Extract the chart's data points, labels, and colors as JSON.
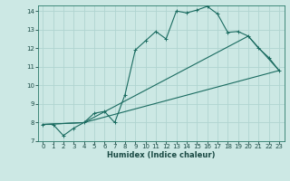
{
  "xlabel": "Humidex (Indice chaleur)",
  "xlim": [
    -0.5,
    23.5
  ],
  "ylim": [
    7,
    14.3
  ],
  "yticks": [
    7,
    8,
    9,
    10,
    11,
    12,
    13,
    14
  ],
  "xticks": [
    0,
    1,
    2,
    3,
    4,
    5,
    6,
    7,
    8,
    9,
    10,
    11,
    12,
    13,
    14,
    15,
    16,
    17,
    18,
    19,
    20,
    21,
    22,
    23
  ],
  "background_color": "#cce8e4",
  "grid_color": "#b0d4d0",
  "line_color": "#1a6b60",
  "curve1_x": [
    0,
    1,
    2,
    3,
    4,
    5,
    6,
    7,
    8,
    9,
    10,
    11,
    12,
    13,
    14,
    15,
    16,
    17,
    18,
    19,
    20,
    21,
    22,
    23
  ],
  "curve1_y": [
    7.9,
    7.9,
    7.3,
    7.7,
    8.0,
    8.5,
    8.6,
    8.0,
    9.5,
    11.9,
    12.4,
    12.9,
    12.5,
    14.0,
    13.9,
    14.05,
    14.25,
    13.85,
    12.85,
    12.9,
    12.65,
    12.0,
    11.5,
    10.8
  ],
  "curve2_x": [
    0,
    4,
    23
  ],
  "curve2_y": [
    7.9,
    8.0,
    10.8
  ],
  "curve3_x": [
    0,
    4,
    20,
    23
  ],
  "curve3_y": [
    7.9,
    8.0,
    12.65,
    10.8
  ]
}
